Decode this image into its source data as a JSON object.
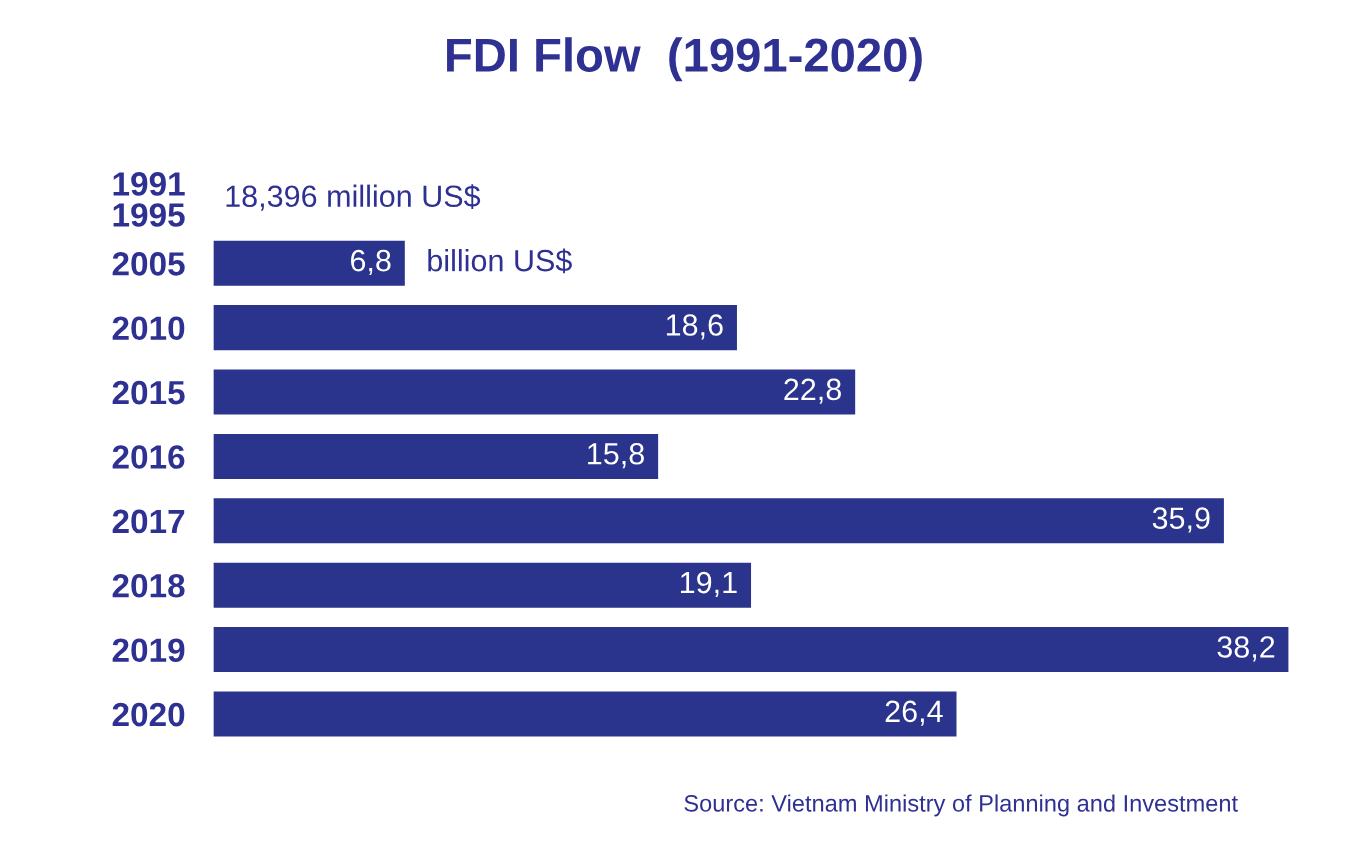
{
  "chart_data": {
    "type": "bar",
    "orientation": "horizontal",
    "title": "FDI Flow  (1991-2020)",
    "categories": [
      "1991\n1995",
      "2005",
      "2010",
      "2015",
      "2016",
      "2017",
      "2018",
      "2019",
      "2020"
    ],
    "values": [
      null,
      6.8,
      18.6,
      22.8,
      15.8,
      35.9,
      19.1,
      38.2,
      26.4
    ],
    "value_labels": [
      "18,396 million US$",
      "6,8",
      "18,6",
      "22,8",
      "15,8",
      "35,9",
      "19,1",
      "38,2",
      "26,4"
    ],
    "color": "#2b348c",
    "annotations": [
      {
        "text": "billion US$",
        "x": 6.8,
        "y": "2005"
      },
      "Source: Vietnam Ministry of Planning and Investment"
    ],
    "grid": false,
    "legend": false
  }
}
